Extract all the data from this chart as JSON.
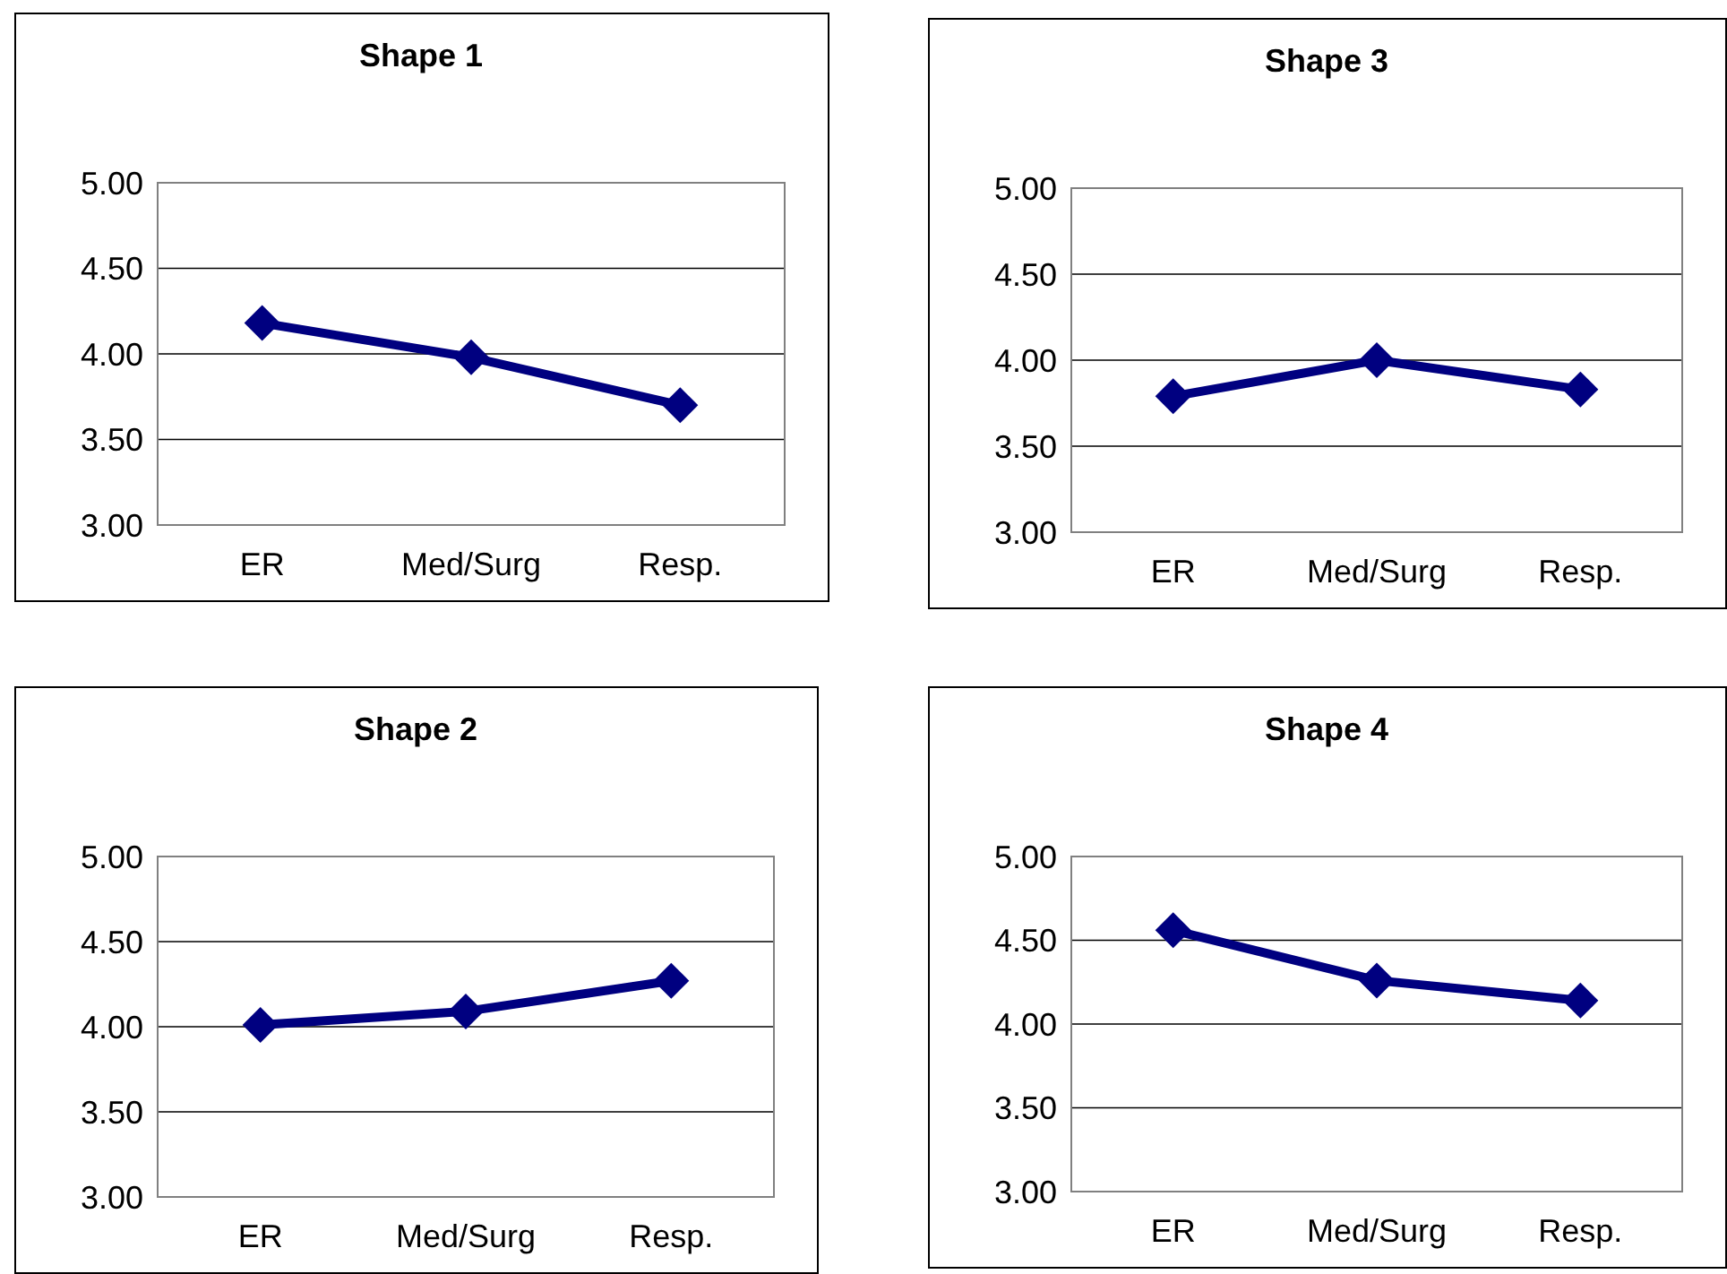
{
  "chart_data": [
    {
      "type": "line",
      "title": "Shape 1",
      "categories": [
        "ER",
        "Med/Surg",
        "Resp."
      ],
      "series": [
        {
          "color": "#000080",
          "values": [
            4.18,
            3.98,
            3.7
          ]
        }
      ],
      "ylim": [
        3,
        5
      ],
      "yticks": [
        {
          "value": 3,
          "label": "3.00"
        },
        {
          "value": 3.5,
          "label": "3.50"
        },
        {
          "value": 4,
          "label": "4.00"
        },
        {
          "value": 4.5,
          "label": "4.50"
        },
        {
          "value": 5,
          "label": "5.00"
        }
      ],
      "grid": "y",
      "marker": "diamond",
      "line_style": "solid"
    },
    {
      "type": "line",
      "title": "Shape 3",
      "categories": [
        "ER",
        "Med/Surg",
        "Resp."
      ],
      "series": [
        {
          "color": "#000080",
          "values": [
            3.79,
            4.0,
            3.83
          ]
        }
      ],
      "ylim": [
        3,
        5
      ],
      "yticks": [
        {
          "value": 3,
          "label": "3.00"
        },
        {
          "value": 3.5,
          "label": "3.50"
        },
        {
          "value": 4,
          "label": "4.00"
        },
        {
          "value": 4.5,
          "label": "4.50"
        },
        {
          "value": 5,
          "label": "5.00"
        }
      ],
      "grid": "y",
      "marker": "diamond",
      "line_style": "solid"
    },
    {
      "type": "line",
      "title": "Shape 2",
      "categories": [
        "ER",
        "Med/Surg",
        "Resp."
      ],
      "series": [
        {
          "color": "#000080",
          "values": [
            4.01,
            4.09,
            4.27
          ]
        }
      ],
      "ylim": [
        3,
        5
      ],
      "yticks": [
        {
          "value": 3,
          "label": "3.00"
        },
        {
          "value": 3.5,
          "label": "3.50"
        },
        {
          "value": 4,
          "label": "4.00"
        },
        {
          "value": 4.5,
          "label": "4.50"
        },
        {
          "value": 5,
          "label": "5.00"
        }
      ],
      "grid": "y",
      "marker": "diamond",
      "line_style": "solid"
    },
    {
      "type": "line",
      "title": "Shape 4",
      "categories": [
        "ER",
        "Med/Surg",
        "Resp."
      ],
      "series": [
        {
          "color": "#000080",
          "values": [
            4.56,
            4.26,
            4.14
          ]
        }
      ],
      "ylim": [
        3,
        5
      ],
      "yticks": [
        {
          "value": 3,
          "label": "3.00"
        },
        {
          "value": 3.5,
          "label": "3.50"
        },
        {
          "value": 4,
          "label": "4.00"
        },
        {
          "value": 4.5,
          "label": "4.50"
        },
        {
          "value": 5,
          "label": "5.00"
        }
      ],
      "grid": "y",
      "marker": "diamond",
      "line_style": "solid"
    }
  ]
}
